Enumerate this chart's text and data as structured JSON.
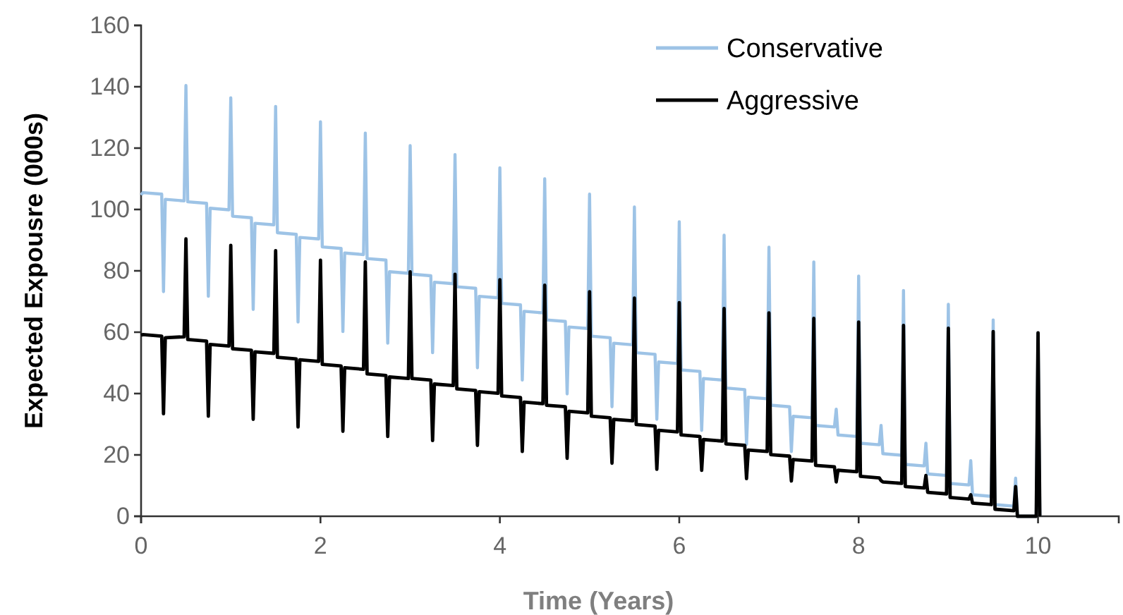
{
  "chart_data": {
    "type": "line",
    "xlabel": "Time (Years)",
    "ylabel": "Expected Expousre (000s)",
    "xlim": [
      0,
      10.9
    ],
    "xticks": [
      0,
      2,
      4,
      6,
      8,
      10
    ],
    "ylim": [
      0,
      160
    ],
    "yticks": [
      0,
      20,
      40,
      60,
      80,
      100,
      120,
      140,
      160
    ],
    "grid": false,
    "legend": "top right",
    "marker": "none",
    "line_style": "solid",
    "x": [
      0,
      0.02,
      0.23,
      0.25,
      0.27,
      0.48,
      0.5,
      0.52,
      0.73,
      0.75,
      0.77,
      0.98,
      1,
      1.02,
      1.23,
      1.25,
      1.27,
      1.48,
      1.5,
      1.52,
      1.73,
      1.75,
      1.77,
      1.98,
      2,
      2.02,
      2.23,
      2.25,
      2.27,
      2.48,
      2.5,
      2.52,
      2.73,
      2.75,
      2.77,
      2.98,
      3,
      3.02,
      3.23,
      3.25,
      3.27,
      3.48,
      3.5,
      3.52,
      3.73,
      3.75,
      3.77,
      3.98,
      4,
      4.02,
      4.23,
      4.25,
      4.27,
      4.48,
      4.5,
      4.52,
      4.73,
      4.75,
      4.77,
      4.98,
      5,
      5.02,
      5.23,
      5.25,
      5.27,
      5.48,
      5.5,
      5.52,
      5.73,
      5.75,
      5.77,
      5.98,
      6,
      6.02,
      6.23,
      6.25,
      6.27,
      6.48,
      6.5,
      6.52,
      6.73,
      6.75,
      6.77,
      6.98,
      7,
      7.02,
      7.23,
      7.25,
      7.27,
      7.48,
      7.5,
      7.52,
      7.73,
      7.75,
      7.77,
      7.98,
      8,
      8.02,
      8.23,
      8.25,
      8.27,
      8.48,
      8.5,
      8.52,
      8.73,
      8.75,
      8.77,
      8.98,
      9,
      9.02,
      9.23,
      9.25,
      9.27,
      9.48,
      9.5,
      9.52,
      9.73,
      9.75,
      9.77,
      9.98,
      10,
      10.02
    ],
    "series": [
      {
        "name": "Conservative",
        "color": "#9dc3e6",
        "values": [
          104.7,
          105.5,
          105,
          73.2,
          103.3,
          102.8,
          140.4,
          102.5,
          102,
          71.7,
          100.4,
          99.9,
          136.4,
          97.8,
          97.3,
          67.4,
          95.5,
          95,
          133.6,
          92.4,
          91.9,
          63.3,
          90.9,
          90.4,
          128.6,
          87.8,
          87.3,
          60.2,
          85.8,
          85.3,
          124.9,
          84,
          83.5,
          56.4,
          79.7,
          79.2,
          120.8,
          78.9,
          78.4,
          53.3,
          76.3,
          75.8,
          117.9,
          74.8,
          74.3,
          48.4,
          71.7,
          71.2,
          113.6,
          69.4,
          68.9,
          44.4,
          66.8,
          66.3,
          110,
          64,
          63.5,
          39.9,
          61.7,
          61.2,
          105,
          58.7,
          58.2,
          35.7,
          56.4,
          55.9,
          100.8,
          53.3,
          52.8,
          31.6,
          50.3,
          49.8,
          96,
          47.7,
          47.2,
          28,
          44.9,
          44.4,
          91.6,
          41.8,
          41.3,
          23.4,
          38.8,
          38.3,
          87.7,
          36.2,
          35.7,
          21.1,
          32.6,
          32.1,
          82.9,
          29.6,
          29.1,
          34.9,
          26.5,
          26,
          78.3,
          23.8,
          23.3,
          29.6,
          20.4,
          19.9,
          73.6,
          16.9,
          16.4,
          23.8,
          13.8,
          13.3,
          69.1,
          10.7,
          10.2,
          18.1,
          7,
          6.5,
          64,
          3.8,
          3.3,
          12.4,
          0,
          0,
          59.8,
          0
        ]
      },
      {
        "name": "Aggressive",
        "color": "#000000",
        "values": [
          59,
          59.2,
          58.7,
          33.4,
          58.2,
          58.5,
          90.4,
          57.6,
          57.1,
          32.6,
          56,
          55.5,
          88.3,
          54.6,
          54.1,
          31.6,
          53.6,
          53.1,
          86.6,
          51.8,
          51.3,
          29.1,
          51,
          50.5,
          83.5,
          49.5,
          49,
          27.7,
          48.4,
          47.9,
          82.9,
          46.4,
          45.9,
          26,
          45.4,
          44.9,
          79.7,
          44.9,
          44.4,
          24.7,
          43.1,
          42.6,
          78.9,
          41.5,
          41,
          23.1,
          40.6,
          40.1,
          77.1,
          39.2,
          38.7,
          21.1,
          37.2,
          36.7,
          75.3,
          36.2,
          35.7,
          18.9,
          34.2,
          33.7,
          73.2,
          32.6,
          32.1,
          17.3,
          31.6,
          31.1,
          71.1,
          29.9,
          29.4,
          15.3,
          28,
          27.5,
          69.6,
          26.5,
          26,
          15,
          25,
          24.5,
          67.7,
          23.6,
          23.1,
          12.3,
          21.6,
          21.1,
          66.3,
          20.1,
          19.6,
          11.5,
          18.5,
          18,
          64.5,
          16.6,
          16.1,
          11.2,
          15,
          14.5,
          63.3,
          13,
          12.5,
          11.6,
          11.2,
          10.7,
          62.2,
          9.7,
          9.2,
          13.3,
          7.8,
          7.3,
          61.3,
          6.1,
          5.6,
          7,
          4.3,
          3.8,
          60.2,
          2.3,
          1.8,
          9.7,
          0,
          0,
          59.8,
          0
        ]
      }
    ]
  }
}
